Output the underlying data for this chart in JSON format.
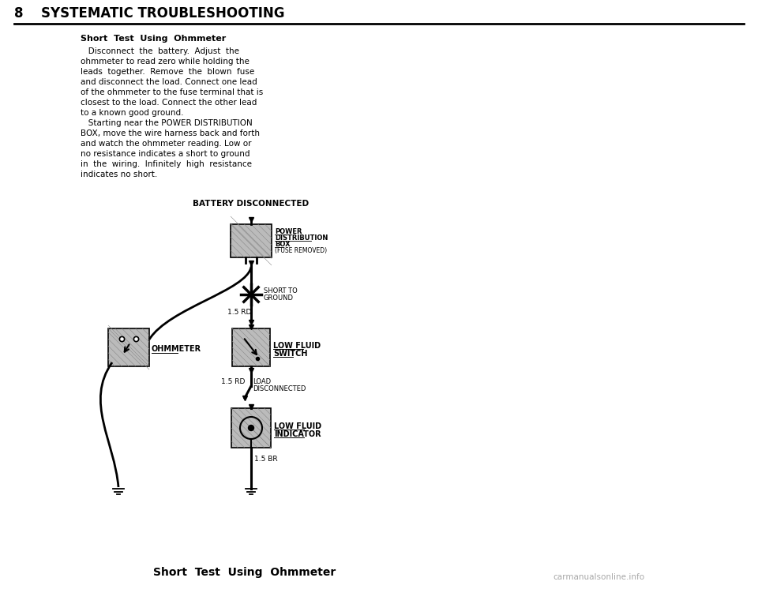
{
  "page_number": "8",
  "section_title": "SYSTEMATIC TROUBLESHOOTING",
  "subsection_title": "Short  Test  Using  Ohmmeter",
  "body_text_line1": "   Disconnect  the  battery.  Adjust  the",
  "body_text_line2": "ohmmeter to read zero while holding the",
  "body_text_line3": "leads  together.  Remove  the  blown  fuse",
  "body_text_line4": "and disconnect the load. Connect one lead",
  "body_text_line5": "of the ohmmeter to the fuse terminal that is",
  "body_text_line6": "closest to the load. Connect the other lead",
  "body_text_line7": "to a known good ground.",
  "body_text_line8": "   Starting near the POWER DISTRIBUTION",
  "body_text_line9": "BOX, move the wire harness back and forth",
  "body_text_line10": "and watch the ohmmeter reading. Low or",
  "body_text_line11": "no resistance indicates a short to ground",
  "body_text_line12": "in  the  wiring.  Infinitely  high  resistance",
  "body_text_line13": "indicates no short.",
  "diagram_title": "BATTERY DISCONNECTED",
  "caption": "Short  Test  Using  Ohmmeter",
  "label_pdb_1": "POWER",
  "label_pdb_2": "DISTRIBUTION",
  "label_pdb_3": "BOX",
  "label_pdb_4": "(FUSE REMOVED)",
  "label_short_1": "SHORT TO",
  "label_short_2": "GROUND",
  "label_15rd_1": "1.5 RD",
  "label_lfs_1": "LOW FLUID",
  "label_lfs_2": "SWITCH",
  "label_15rd_2": "1.5 RD",
  "label_load_1": "LOAD",
  "label_load_2": "DISCONNECTED",
  "label_lfi_1": "LOW FLUID",
  "label_lfi_2": "INDICATOR",
  "label_15br": "1.5 BR",
  "label_ohmmeter": "OHMMETER",
  "bg_color": "#ffffff",
  "text_color": "#000000",
  "box_fill": "#bbbbbb",
  "wire_color": "#111111"
}
